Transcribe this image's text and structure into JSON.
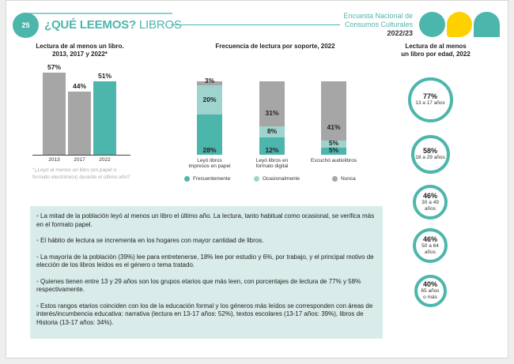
{
  "header": {
    "page_number": "25",
    "title_bold": "¿QUÉ LEEMOS?",
    "title_rest": " LIBROS",
    "survey_line1": "Encuesta Nacional de",
    "survey_line2": "Consumos Culturales",
    "survey_year": "2022/23",
    "colors": {
      "accent": "#4db6ac",
      "yellow": "#fdd000",
      "gray": "#a6a6a6"
    }
  },
  "chart1": {
    "title_line1": "Lectura de al menos un libro.",
    "title_line2": "2013, 2017 y 2022*",
    "note": "*¿Leyó al menos un libro (en papel o formato electrónico) durante el último año?",
    "value_labels": [
      "57%",
      "44%",
      "51%"
    ]
  },
  "chart2": {
    "title": "Frecuencia de lectura por soporte, 2022",
    "category_line1": [
      "Leyó libros",
      "Leyó libros en",
      "Escuchó audiolibros"
    ],
    "category_line2": [
      "impresos en papel",
      "formato digital",
      ""
    ],
    "legend": [
      "Frecuentemente",
      "Ocasionalmente",
      "Nunca"
    ],
    "labels": {
      "frecuentemente": [
        "28%",
        "12%",
        "5%"
      ],
      "ocasionalmente": [
        "20%",
        "8%",
        "5%"
      ],
      "nunca": [
        "3%",
        "31%",
        "41%"
      ]
    }
  },
  "chart3": {
    "title_line1": "Lectura de al menos",
    "title_line2": "un libro por edad, 2022",
    "groups": [
      {
        "pct": "77%",
        "age": "13 a 17 años",
        "age2": ""
      },
      {
        "pct": "58%",
        "age": "18 a 29 años",
        "age2": ""
      },
      {
        "pct": "46%",
        "age": "30 a 49 años",
        "age2": ""
      },
      {
        "pct": "46%",
        "age": "50 a 64 años",
        "age2": ""
      },
      {
        "pct": "40%",
        "age": "65 años",
        "age2": "o más"
      }
    ]
  },
  "chart_data": [
    {
      "type": "bar",
      "title": "Lectura de al menos un libro. 2013, 2017 y 2022*",
      "categories": [
        "2013",
        "2017",
        "2022"
      ],
      "values": [
        57,
        44,
        51
      ],
      "colors": [
        "#a6a6a6",
        "#a6a6a6",
        "#4db6ac"
      ],
      "ylim": [
        0,
        57
      ]
    },
    {
      "type": "bar",
      "stacked": true,
      "title": "Frecuencia de lectura por soporte, 2022",
      "categories": [
        "Leyó libros impresos en papel",
        "Leyó libros en formato digital",
        "Escuchó audiolibros"
      ],
      "series": [
        {
          "name": "Frecuentemente",
          "values": [
            28,
            12,
            5
          ],
          "color": "#4db6ac"
        },
        {
          "name": "Ocasionalmente",
          "values": [
            20,
            8,
            5
          ],
          "color": "#9fd3ce"
        },
        {
          "name": "Nunca",
          "values": [
            3,
            31,
            41
          ],
          "color": "#a6a6a6"
        }
      ],
      "legend": "bottom"
    },
    {
      "type": "bubble",
      "title": "Lectura de al menos un libro por edad, 2022",
      "categories": [
        "13 a 17 años",
        "18 a 29 años",
        "30 a 49 años",
        "50 a 64 años",
        "65 años o más"
      ],
      "values": [
        77,
        58,
        46,
        46,
        40
      ]
    }
  ],
  "text": {
    "bullets": [
      "La mitad de la población leyó al menos un libro el último año. La lectura, tanto habitual como ocasional, se verifica más en el formato papel.",
      "El hábito de lectura se incrementa en los hogares con mayor cantidad de libros.",
      "La mayoría de la población (39%) lee para entretenerse, 18% lee por estudio y 6%, por trabajo, y el principal motivo de elección de los libros leídos es el género o tema tratado.",
      "Quienes tienen entre 13 y 29 años son los grupos etarios que más leen, con porcentajes de lectura de 77% y 58% respectivamente.",
      "Estos rangos etarios coinciden con los de la educación formal y los géneros más leídos se corresponden con áreas de interés/incumbencia educativa: narrativa (lectura en 13-17 años: 52%), textos escolares (13-17 años: 39%), libros de Historia (13-17 años: 34%)."
    ]
  }
}
